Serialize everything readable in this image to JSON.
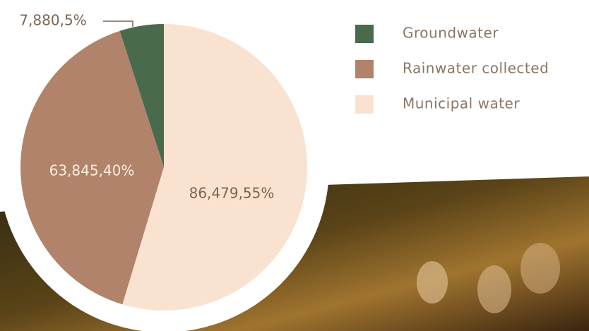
{
  "chart_data": {
    "type": "pie",
    "categories": [
      "Groundwater",
      "Rainwater collected",
      "Municipal water"
    ],
    "values": [
      7880,
      63845,
      86479
    ],
    "value_labels": [
      "7,880,5%",
      "63,845,40%",
      "86,479,55%"
    ],
    "colors": [
      "#4a6a4d",
      "#b1836a",
      "#f9e2d0"
    ],
    "legend": "top-right"
  }
}
